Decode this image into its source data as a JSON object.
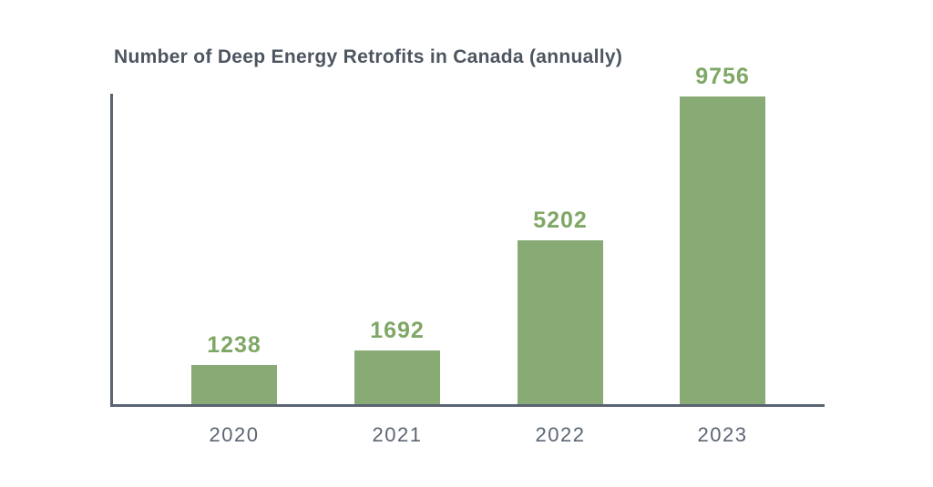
{
  "title": "Number of Deep Energy Retrofits in Canada (annually)",
  "colors": {
    "bar_fill": "#88aa75",
    "value_label": "#7fa765",
    "axis": "#5b6472",
    "tick_label": "#5b6572",
    "title_text": "#4c5560",
    "background": "#ffffff"
  },
  "chart_data": {
    "type": "bar",
    "title": "Number of Deep Energy Retrofits in Canada (annually)",
    "categories": [
      "2020",
      "2021",
      "2022",
      "2023"
    ],
    "values": [
      1238,
      1692,
      5202,
      9756
    ],
    "value_labels": [
      "1238",
      "1692",
      "5202",
      "9756"
    ],
    "xlabel": "",
    "ylabel": "",
    "ylim": [
      0,
      10000
    ],
    "grid": false,
    "legend": false,
    "value_labels_position": "above-bars",
    "axis_style": "left-and-bottom-only"
  }
}
